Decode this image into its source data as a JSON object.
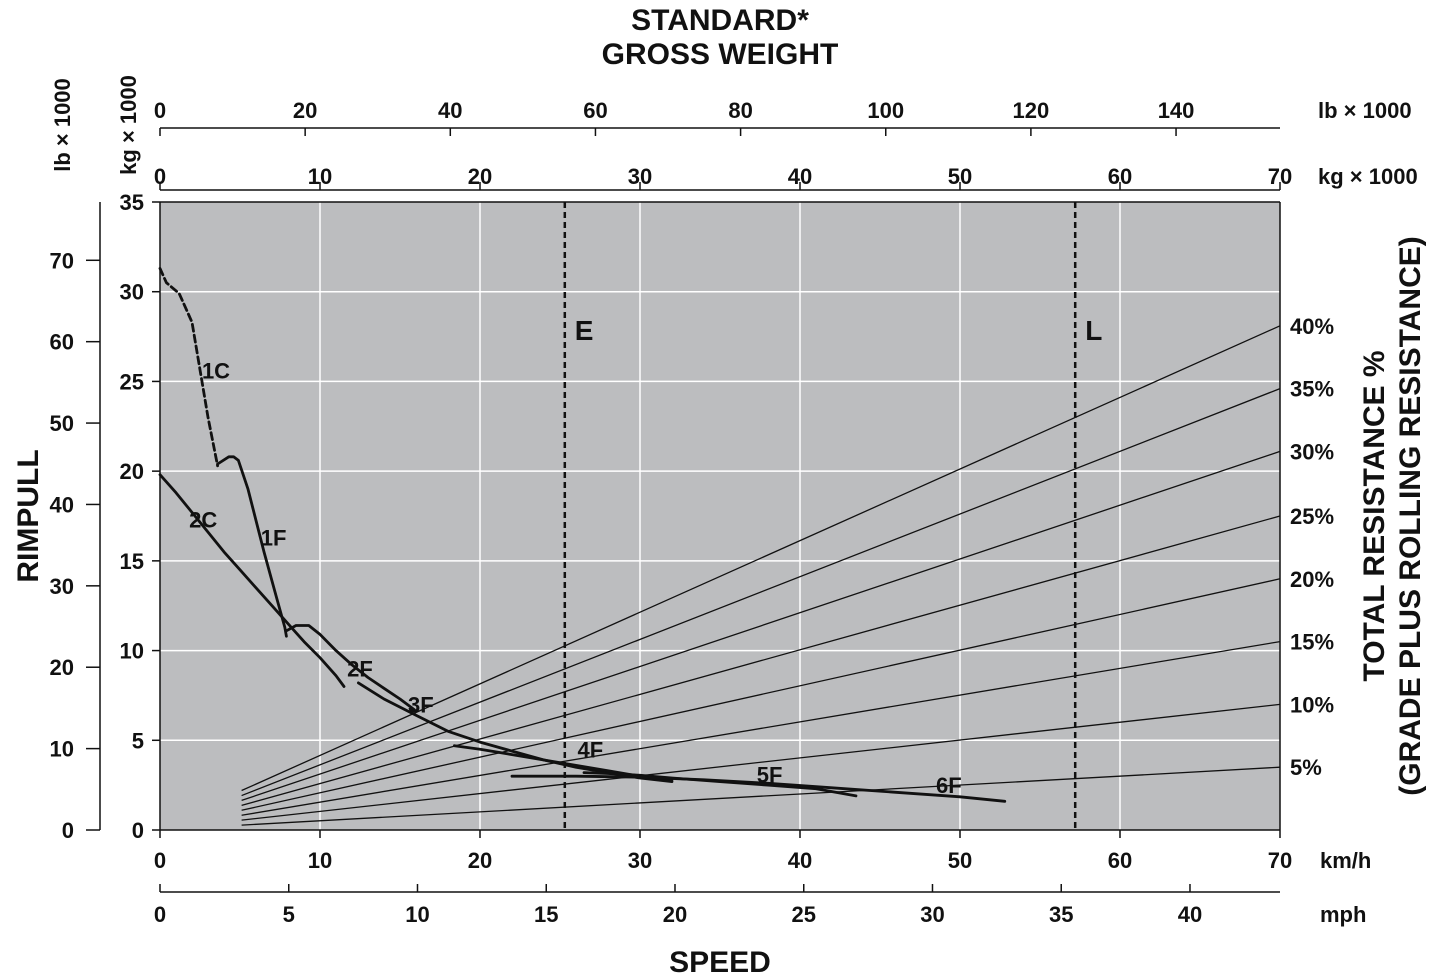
{
  "chart_data": {
    "type": "line",
    "title": [
      "STANDARD*",
      "GROSS WEIGHT"
    ],
    "xlabel": "SPEED",
    "ylabel": "RIMPULL",
    "y2label": [
      "TOTAL RESISTANCE %",
      "(GRADE PLUS ROLLING RESISTANCE)"
    ],
    "x_kmh": {
      "unit": "km/h",
      "range": [
        0,
        70
      ],
      "ticks": [
        0,
        10,
        20,
        30,
        40,
        50,
        60,
        70
      ]
    },
    "x_mph": {
      "unit": "mph",
      "ticks": [
        0,
        5,
        10,
        15,
        20,
        25,
        30,
        35,
        40
      ]
    },
    "weight_kg": {
      "unit": "kg × 1000",
      "vertical_label": "kg × 1000",
      "range": [
        0,
        70
      ],
      "ticks": [
        0,
        10,
        20,
        30,
        40,
        50,
        60,
        70
      ]
    },
    "weight_lb": {
      "unit": "lb × 1000",
      "ticks": [
        0,
        20,
        40,
        60,
        80,
        100,
        120,
        140
      ]
    },
    "rimpull_kg": {
      "unit": "kg × 1000",
      "range": [
        0,
        35
      ],
      "ticks": [
        0,
        5,
        10,
        15,
        20,
        25,
        30,
        35
      ]
    },
    "rimpull_lb": {
      "unit": "lb × 1000",
      "ticks": [
        0,
        10,
        20,
        30,
        40,
        50,
        60,
        70
      ]
    },
    "grid": true,
    "background": "#bcbdbf",
    "line_color": "#111111",
    "vertical_markers": [
      {
        "label": "E",
        "weight": 25.3,
        "style": "dashed"
      },
      {
        "label": "L",
        "weight": 57.2,
        "style": "dashed"
      }
    ],
    "resistance_lines": [
      {
        "label": "5%",
        "from": [
          5.1,
          0.27
        ],
        "to": [
          70,
          3.5
        ]
      },
      {
        "label": "10%",
        "from": [
          5.1,
          0.55
        ],
        "to": [
          70,
          7.0
        ]
      },
      {
        "label": "15%",
        "from": [
          5.1,
          0.82
        ],
        "to": [
          70,
          10.5
        ]
      },
      {
        "label": "20%",
        "from": [
          5.1,
          1.1
        ],
        "to": [
          70,
          14.0
        ]
      },
      {
        "label": "25%",
        "from": [
          5.1,
          1.37
        ],
        "to": [
          70,
          17.5
        ]
      },
      {
        "label": "30%",
        "from": [
          5.1,
          1.65
        ],
        "to": [
          70,
          21.1
        ]
      },
      {
        "label": "35%",
        "from": [
          5.1,
          1.92
        ],
        "to": [
          70,
          24.6
        ]
      },
      {
        "label": "40%",
        "from": [
          5.1,
          2.2
        ],
        "to": [
          70,
          28.1
        ]
      }
    ],
    "series": [
      {
        "name": "1C",
        "style": "dashed",
        "x": [
          0.0,
          0.4,
          1.2,
          2.0,
          3.0,
          3.6
        ],
        "y": [
          31.3,
          30.5,
          29.9,
          28.3,
          23.0,
          20.3
        ]
      },
      {
        "name": "1F",
        "style": "solid",
        "x": [
          3.6,
          4.3,
          4.6,
          4.9,
          5.5,
          6.5,
          7.3,
          7.8,
          7.9
        ],
        "y": [
          20.4,
          20.8,
          20.8,
          20.6,
          19.0,
          15.5,
          12.9,
          11.3,
          10.8
        ]
      },
      {
        "name": "2C",
        "style": "solid",
        "x": [
          0.0,
          1.0,
          2.0,
          3.0,
          4.0,
          5.0,
          6.0,
          7.0,
          8.0,
          9.0,
          10.0,
          11.0,
          11.5
        ],
        "y": [
          19.8,
          18.8,
          17.7,
          16.6,
          15.5,
          14.5,
          13.5,
          12.5,
          11.5,
          10.5,
          9.6,
          8.6,
          8.0
        ]
      },
      {
        "name": "2F",
        "style": "solid",
        "x": [
          7.9,
          8.5,
          9.3,
          10.0,
          11.0,
          12.0,
          13.0,
          14.0,
          15.0,
          15.9
        ],
        "y": [
          11.1,
          11.4,
          11.4,
          10.9,
          10.0,
          9.2,
          8.5,
          7.9,
          7.3,
          6.7
        ]
      },
      {
        "name": "3F",
        "style": "solid",
        "x": [
          12.4,
          14.0,
          16.0,
          18.0,
          20.0,
          22.0,
          24.0,
          26.0,
          28.0,
          30.0,
          32.0
        ],
        "y": [
          8.2,
          7.3,
          6.4,
          5.5,
          4.9,
          4.4,
          3.9,
          3.5,
          3.2,
          2.9,
          2.7
        ]
      },
      {
        "name": "4F",
        "style": "solid",
        "x": [
          18.4,
          20.0,
          22.0,
          24.0,
          26.0,
          28.0,
          30.0,
          32.0
        ],
        "y": [
          4.7,
          4.5,
          4.2,
          3.9,
          3.6,
          3.3,
          3.0,
          2.8
        ]
      },
      {
        "name": "5F",
        "style": "solid",
        "x": [
          26.5,
          28.0,
          30.0,
          32.0,
          35.0,
          38.0,
          41.0,
          43.5
        ],
        "y": [
          3.2,
          3.15,
          3.05,
          2.9,
          2.7,
          2.5,
          2.3,
          1.9
        ]
      },
      {
        "name": "6F",
        "style": "solid",
        "x": [
          22.0,
          26.0,
          30.0,
          34.0,
          38.0,
          42.0,
          46.0,
          50.0,
          52.8
        ],
        "y": [
          3.0,
          3.0,
          2.95,
          2.8,
          2.6,
          2.35,
          2.1,
          1.85,
          1.6
        ]
      }
    ],
    "curve_labels": [
      {
        "text": "1C",
        "at": [
          3.5,
          25.6
        ]
      },
      {
        "text": "1F",
        "at": [
          7.1,
          16.3
        ]
      },
      {
        "text": "2C",
        "at": [
          2.7,
          17.3
        ]
      },
      {
        "text": "2F",
        "at": [
          12.5,
          9.0
        ]
      },
      {
        "text": "3F",
        "at": [
          16.3,
          7.0
        ]
      },
      {
        "text": "4F",
        "at": [
          26.9,
          4.5
        ]
      },
      {
        "text": "5F",
        "at": [
          38.1,
          3.1
        ]
      },
      {
        "text": "6F",
        "at": [
          49.3,
          2.5
        ]
      }
    ]
  }
}
